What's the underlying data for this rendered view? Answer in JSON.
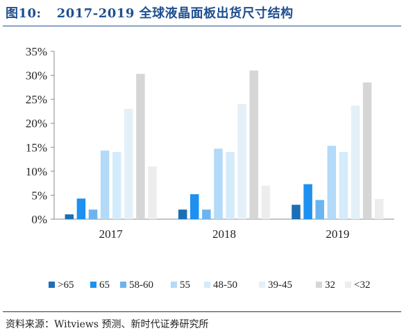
{
  "figure": {
    "number": "图10:",
    "title": "2017-2019 全球液晶面板出货尺寸结构",
    "source": "资料来源：Witviews 预测、新时代证券研究所"
  },
  "chart_data": {
    "type": "bar",
    "categories": [
      "2017",
      "2018",
      "2019"
    ],
    "ylim": [
      0,
      35
    ],
    "yticks": [
      0,
      5,
      10,
      15,
      20,
      25,
      30,
      35
    ],
    "ytick_labels": [
      "0%",
      "5%",
      "10%",
      "15%",
      "20%",
      "25%",
      "30%",
      "35%"
    ],
    "legend_position": "bottom",
    "grid": false,
    "series": [
      {
        "name": ">65",
        "color": "#1a6fb5",
        "values": [
          1.0,
          2.0,
          3.0
        ]
      },
      {
        "name": "65",
        "color": "#1e90f0",
        "values": [
          4.3,
          5.2,
          7.3
        ]
      },
      {
        "name": "58-60",
        "color": "#6cb4f0",
        "values": [
          2.0,
          2.0,
          4.0
        ]
      },
      {
        "name": "55",
        "color": "#b3daf8",
        "values": [
          14.3,
          14.7,
          15.3
        ]
      },
      {
        "name": "48-50",
        "color": "#d4ebfb",
        "values": [
          14.0,
          14.0,
          14.0
        ]
      },
      {
        "name": "39-45",
        "color": "#e3f0f8",
        "values": [
          23.0,
          24.0,
          23.7
        ]
      },
      {
        "name": "32",
        "color": "#d6d6d6",
        "values": [
          30.3,
          31.0,
          28.5
        ]
      },
      {
        "name": "<32",
        "color": "#ededed",
        "values": [
          11.0,
          7.0,
          4.2
        ]
      }
    ]
  }
}
